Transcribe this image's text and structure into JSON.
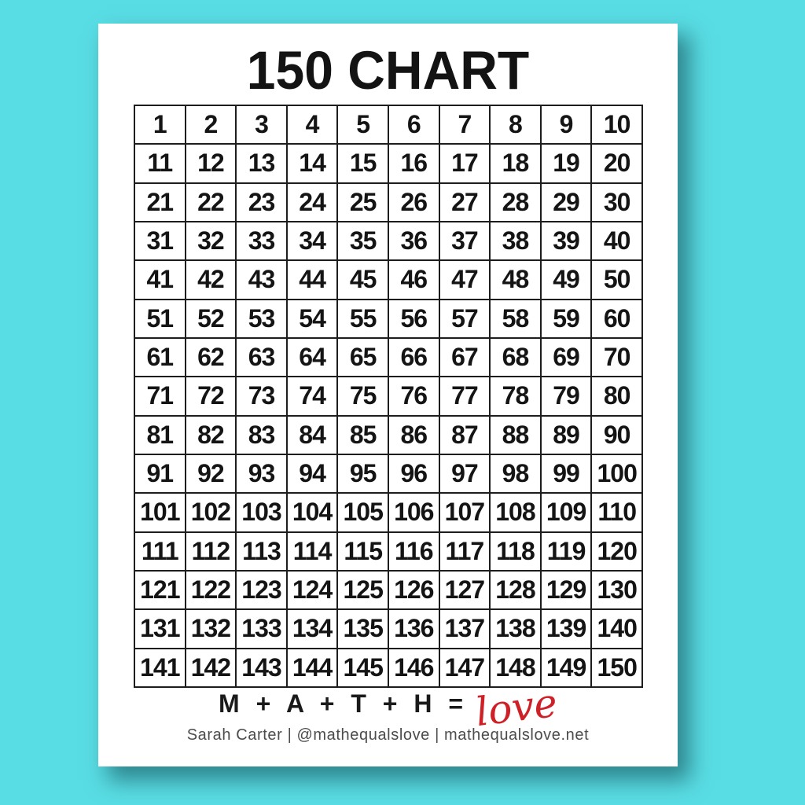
{
  "title": "150 CHART",
  "grid": {
    "rows": [
      [
        1,
        2,
        3,
        4,
        5,
        6,
        7,
        8,
        9,
        10
      ],
      [
        11,
        12,
        13,
        14,
        15,
        16,
        17,
        18,
        19,
        20
      ],
      [
        21,
        22,
        23,
        24,
        25,
        26,
        27,
        28,
        29,
        30
      ],
      [
        31,
        32,
        33,
        34,
        35,
        36,
        37,
        38,
        39,
        40
      ],
      [
        41,
        42,
        43,
        44,
        45,
        46,
        47,
        48,
        49,
        50
      ],
      [
        51,
        52,
        53,
        54,
        55,
        56,
        57,
        58,
        59,
        60
      ],
      [
        61,
        62,
        63,
        64,
        65,
        66,
        67,
        68,
        69,
        70
      ],
      [
        71,
        72,
        73,
        74,
        75,
        76,
        77,
        78,
        79,
        80
      ],
      [
        81,
        82,
        83,
        84,
        85,
        86,
        87,
        88,
        89,
        90
      ],
      [
        91,
        92,
        93,
        94,
        95,
        96,
        97,
        98,
        99,
        100
      ],
      [
        101,
        102,
        103,
        104,
        105,
        106,
        107,
        108,
        109,
        110
      ],
      [
        111,
        112,
        113,
        114,
        115,
        116,
        117,
        118,
        119,
        120
      ],
      [
        121,
        122,
        123,
        124,
        125,
        126,
        127,
        128,
        129,
        130
      ],
      [
        131,
        132,
        133,
        134,
        135,
        136,
        137,
        138,
        139,
        140
      ],
      [
        141,
        142,
        143,
        144,
        145,
        146,
        147,
        148,
        149,
        150
      ]
    ]
  },
  "footer": {
    "math_expression": "M + A + T + H =",
    "love_word": "love",
    "credit": "Sarah Carter  |  @mathequalslove  |  mathequalslove.net"
  },
  "colors": {
    "background_teal": "#59DDE4",
    "page_white": "#FFFFFF",
    "grid_border_black": "#1D1D1D",
    "number_black": "#141414",
    "love_red": "#CE2127",
    "credit_gray": "#4C4C4C"
  }
}
